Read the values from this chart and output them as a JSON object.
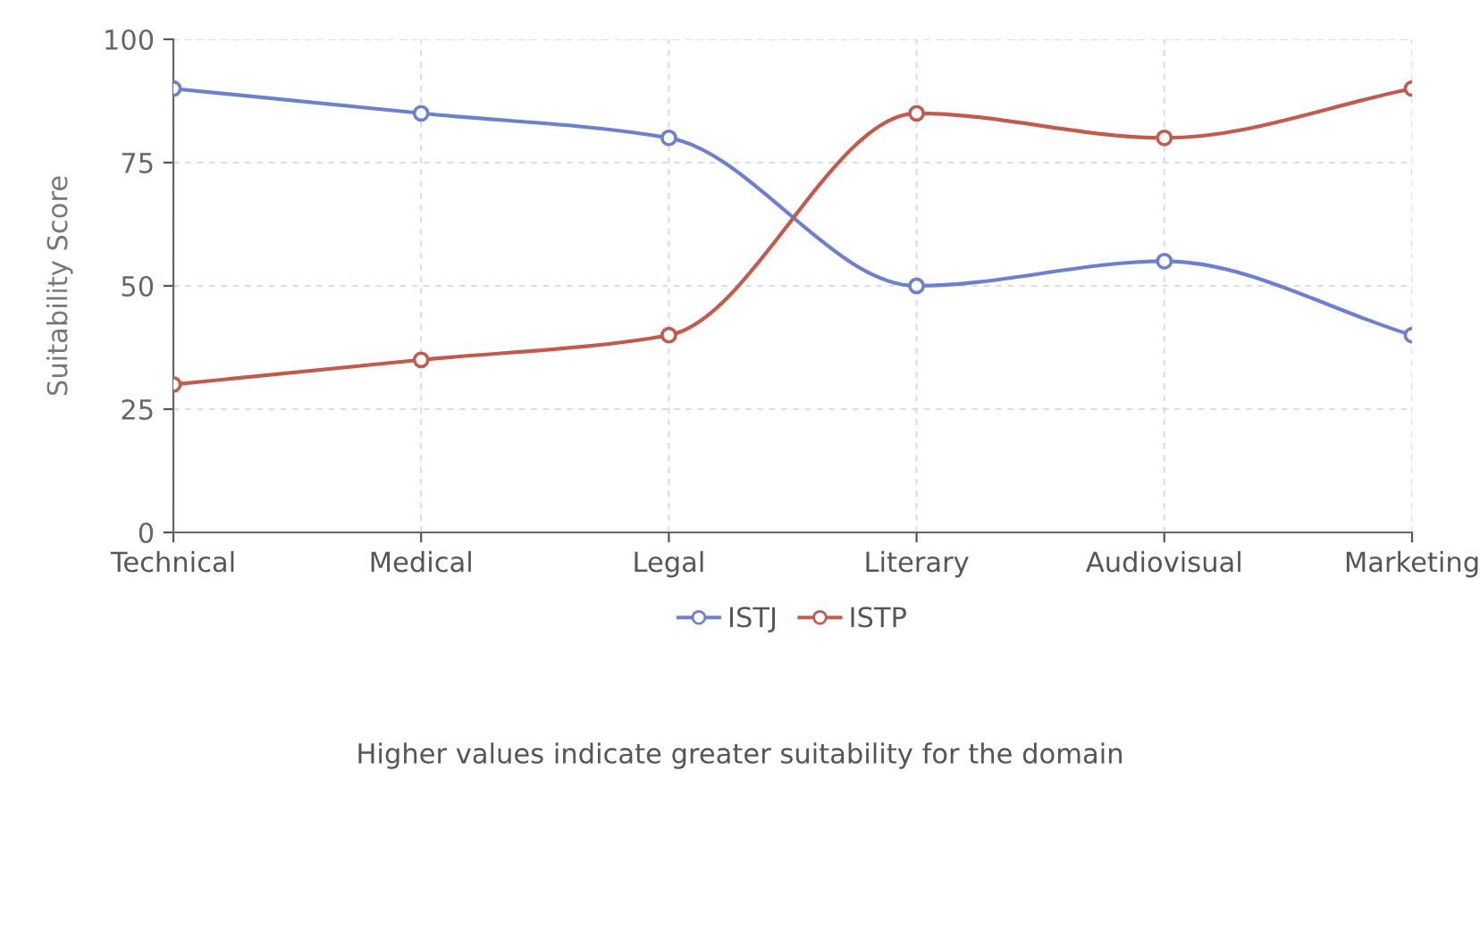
{
  "chart_data": {
    "type": "line",
    "ylabel": "Suitability Score",
    "categories": [
      "Technical",
      "Medical",
      "Legal",
      "Literary",
      "Audiovisual",
      "Marketing"
    ],
    "series": [
      {
        "name": "ISTJ",
        "color": "#6b80cf",
        "values": [
          90,
          85,
          80,
          50,
          55,
          40
        ]
      },
      {
        "name": "ISTP",
        "color": "#c45a4c",
        "values": [
          30,
          35,
          40,
          85,
          80,
          90
        ]
      }
    ],
    "ylim": [
      0,
      100
    ],
    "yticks": [
      0,
      25,
      50,
      75,
      100
    ],
    "grid": true,
    "legend": "bottom",
    "marker": "circle",
    "line_style": "solid",
    "annotations": [
      "Higher values indicate greater suitability for the domain"
    ]
  }
}
